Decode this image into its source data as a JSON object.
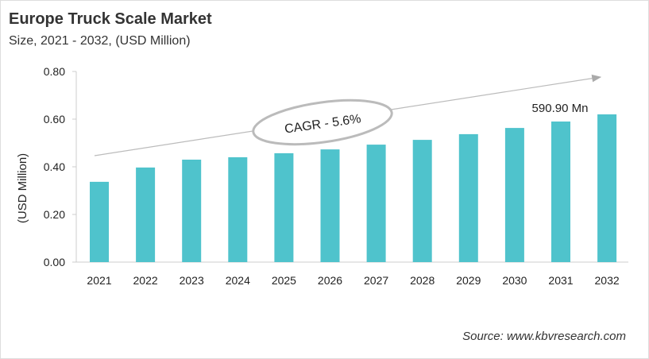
{
  "chart_data": {
    "type": "bar",
    "title": "Europe Truck Scale Market",
    "subtitle": "Size, 2021 - 2032, (USD Million)",
    "xlabel": "",
    "ylabel": "(USD Million)",
    "ylim": [
      0,
      0.8
    ],
    "yticks": [
      "0.00",
      "0.20",
      "0.40",
      "0.60",
      "0.80"
    ],
    "categories": [
      "2021",
      "2022",
      "2023",
      "2024",
      "2025",
      "2026",
      "2027",
      "2028",
      "2029",
      "2030",
      "2031",
      "2032"
    ],
    "values": [
      0.337,
      0.397,
      0.43,
      0.44,
      0.457,
      0.473,
      0.493,
      0.513,
      0.537,
      0.563,
      0.59,
      0.62
    ],
    "bar_color": "#4fc3cc",
    "grid": false,
    "annotations": {
      "cagr": "CAGR - 5.6%",
      "value_label": "590.90 Mn"
    },
    "source": "Source: www.kbvresearch.com"
  }
}
